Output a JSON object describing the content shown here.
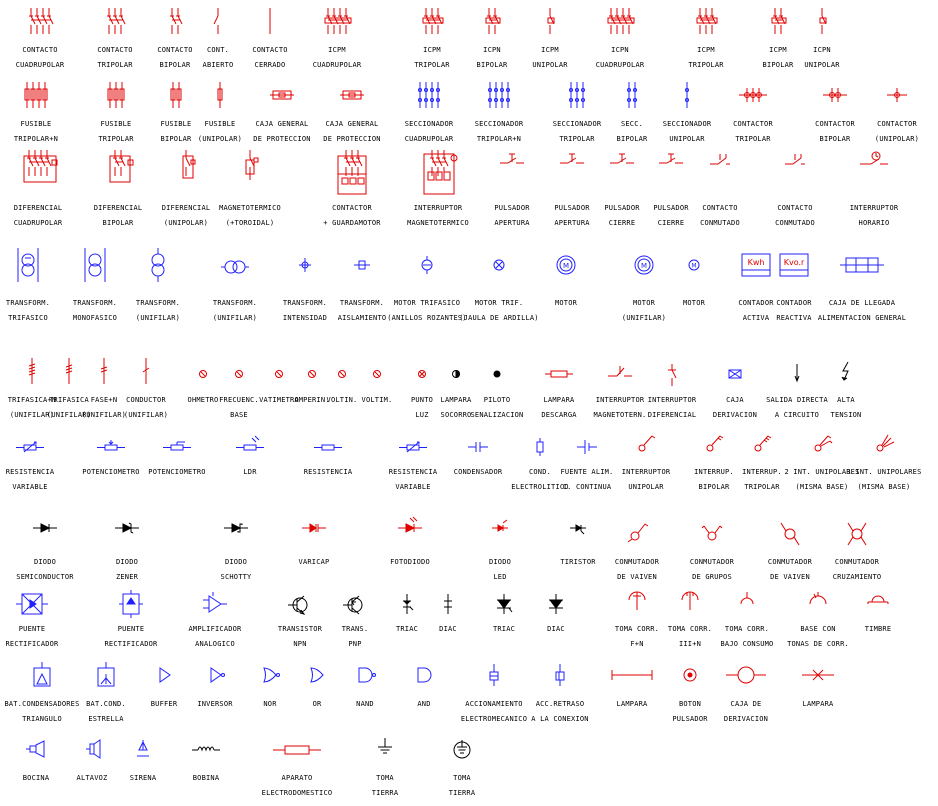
{
  "colors": {
    "red": "#e00000",
    "blue": "#2020ff",
    "black": "#000000"
  },
  "rows": [
    {
      "items": [
        {
          "l1": "CONTACTO",
          "l2": "CUADRUPOLAR",
          "icon": "contact-4pole-icon",
          "color": "red"
        },
        {
          "l1": "CONTACTO",
          "l2": "TRIPOLAR",
          "icon": "contact-3pole-icon",
          "color": "red"
        },
        {
          "l1": "CONTACTO",
          "l2": "BIPOLAR",
          "icon": "contact-2pole-icon",
          "color": "red"
        },
        {
          "l1": "CONT.",
          "l2": "ABIERTO",
          "icon": "contact-open-icon",
          "color": "red"
        },
        {
          "l1": "CONTACTO",
          "l2": "CERRADO",
          "icon": "contact-closed-icon",
          "color": "red"
        },
        {
          "l1": "ICPM",
          "l2": "CUADRUPOLAR",
          "icon": "icpm-4pole-icon",
          "color": "red"
        },
        {
          "l1": "ICPM",
          "l2": "TRIPOLAR",
          "icon": "icpm-3pole-icon",
          "color": "red"
        },
        {
          "l1": "ICPN",
          "l2": "BIPOLAR",
          "icon": "icpn-2pole-icon",
          "color": "red"
        },
        {
          "l1": "ICPM",
          "l2": "UNIPOLAR",
          "icon": "icpm-1pole-icon",
          "color": "red"
        },
        {
          "l1": "ICPN",
          "l2": "CUADRUPOLAR",
          "icon": "icpn-4pole-icon",
          "color": "red"
        },
        {
          "l1": "ICPM",
          "l2": "TRIPOLAR",
          "icon": "icpm-3pole-b-icon",
          "color": "red"
        },
        {
          "l1": "ICPM",
          "l2": "BIPOLAR",
          "icon": "icpm-2pole-icon",
          "color": "red"
        },
        {
          "l1": "ICPN",
          "l2": "UNIPOLAR",
          "icon": "icpn-1pole-icon",
          "color": "red"
        }
      ]
    },
    {
      "items": [
        {
          "l1": "FUSIBLE",
          "l2": "TRIPOLAR+N",
          "icon": "fuse-3pole-n-icon",
          "color": "red"
        },
        {
          "l1": "FUSIBLE",
          "l2": "TRIPOLAR",
          "icon": "fuse-3pole-icon",
          "color": "red"
        },
        {
          "l1": "FUSIBLE",
          "l2": "BIPOLAR",
          "icon": "fuse-2pole-icon",
          "color": "red"
        },
        {
          "l1": "FUSIBLE",
          "l2": "(UNIPOLAR)",
          "icon": "fuse-1pole-icon",
          "color": "red"
        },
        {
          "l1": "CAJA GENERAL",
          "l2": "DE PROTECCION",
          "icon": "protection-box-icon",
          "color": "red"
        },
        {
          "l1": "CAJA GENERAL",
          "l2": "DE PROTECCION",
          "icon": "protection-box-b-icon",
          "color": "red"
        },
        {
          "l1": "SECCIONADOR",
          "l2": "CUADRUPOLAR",
          "icon": "disconnector-4pole-icon",
          "color": "blue"
        },
        {
          "l1": "SECCIONADOR",
          "l2": "TRIPOLAR+N",
          "icon": "disconnector-3pole-n-icon",
          "color": "blue"
        },
        {
          "l1": "SECCIONADOR",
          "l2": "TRIPOLAR",
          "icon": "disconnector-3pole-icon",
          "color": "blue"
        },
        {
          "l1": "SECC.",
          "l2": "BIPOLAR",
          "icon": "disconnector-2pole-icon",
          "color": "blue"
        },
        {
          "l1": "SECCIONADOR",
          "l2": "UNIPOLAR",
          "icon": "disconnector-1pole-icon",
          "color": "blue"
        },
        {
          "l1": "CONTACTOR",
          "l2": "TRIPOLAR",
          "icon": "contactor-3pole-icon",
          "color": "red"
        },
        {
          "l1": "CONTACTOR",
          "l2": "BIPOLAR",
          "icon": "contactor-2pole-icon",
          "color": "red"
        },
        {
          "l1": "CONTACTOR",
          "l2": "(UNIPOLAR)",
          "icon": "contactor-1pole-icon",
          "color": "red"
        }
      ]
    },
    {
      "items": [
        {
          "l1": "DIFERENCIAL",
          "l2": "CUADRUPOLAR",
          "icon": "differential-4pole-icon",
          "color": "red"
        },
        {
          "l1": "DIFERENCIAL",
          "l2": "BIPOLAR",
          "icon": "differential-2pole-icon",
          "color": "red"
        },
        {
          "l1": "DIFERENCIAL",
          "l2": "(UNIPOLAR)",
          "icon": "differential-1pole-icon",
          "color": "red"
        },
        {
          "l1": "MAGNETOTERMICO",
          "l2": "(+TOROIDAL)",
          "icon": "magnetothermal-icon",
          "color": "red"
        },
        {
          "l1": "CONTACTOR",
          "l2": "+ GUARDAMOTOR",
          "icon": "contactor-motorguard-icon",
          "color": "red"
        },
        {
          "l1": "INTERRUPTOR",
          "l2": "MAGNETOTERMICO",
          "icon": "magnetothermal-switch-icon",
          "color": "red"
        },
        {
          "l1": "PULSADOR",
          "l2": "APERTURA",
          "icon": "pushbutton-open-icon",
          "color": "red"
        },
        {
          "l1": "PULSADOR",
          "l2": "APERTURA",
          "icon": "pushbutton-open-b-icon",
          "color": "red"
        },
        {
          "l1": "PULSADOR",
          "l2": "CIERRE",
          "icon": "pushbutton-close-icon",
          "color": "red"
        },
        {
          "l1": "PULSADOR",
          "l2": "CIERRE",
          "icon": "pushbutton-close-b-icon",
          "color": "red"
        },
        {
          "l1": "CONTACTO",
          "l2": "CONMUTADO",
          "icon": "changeover-contact-icon",
          "color": "red"
        },
        {
          "l1": "CONTACTO",
          "l2": "CONMUTADO",
          "icon": "changeover-contact-b-icon",
          "color": "red"
        },
        {
          "l1": "INTERRUPTOR",
          "l2": "HORARIO",
          "icon": "time-switch-icon",
          "color": "red"
        }
      ]
    },
    {
      "items": [
        {
          "l1": "TRANSFORM.",
          "l2": "TRIFASICO",
          "icon": "transformer-3phase-icon",
          "color": "blue"
        },
        {
          "l1": "TRANSFORM.",
          "l2": "MONOFASICO",
          "icon": "transformer-1phase-icon",
          "color": "blue"
        },
        {
          "l1": "TRANSFORM.",
          "l2": "(UNIFILAR)",
          "icon": "transformer-unifilar-icon",
          "color": "blue"
        },
        {
          "l1": "TRANSFORM.",
          "l2": "(UNIFILAR)",
          "icon": "transformer-unifilar-b-icon",
          "color": "blue"
        },
        {
          "l1": "TRANSFORM.",
          "l2": "INTENSIDAD",
          "icon": "current-transformer-icon",
          "color": "blue"
        },
        {
          "l1": "TRANSFORM.",
          "l2": "AISLAMIENTO",
          "icon": "isolation-transformer-icon",
          "color": "blue"
        },
        {
          "l1": "MOTOR TRIFASICO",
          "l2": "(ANILLOS ROZANTES)",
          "icon": "motor-slipring-icon",
          "color": "blue"
        },
        {
          "l1": "MOTOR TRIF.",
          "l2": "(JAULA DE ARDILLA)",
          "icon": "motor-squirrel-icon",
          "color": "blue"
        },
        {
          "l1": "MOTOR",
          "l2": "",
          "icon": "motor-icon",
          "color": "blue"
        },
        {
          "l1": "MOTOR",
          "l2": "(UNIFILAR)",
          "icon": "motor-unifilar-icon",
          "color": "blue"
        },
        {
          "l1": "MOTOR",
          "l2": "",
          "icon": "motor-small-icon",
          "color": "blue"
        },
        {
          "l1": "CONTADOR",
          "l2": "ACTIVA",
          "icon": "meter-active-icon",
          "color": "blue",
          "tag": "Kwh"
        },
        {
          "l1": "CONTADOR",
          "l2": "REACTIVA",
          "icon": "meter-reactive-icon",
          "color": "blue",
          "tag": "Kvo.r"
        },
        {
          "l1": "CAJA DE LLEGADA",
          "l2": "ALIMENTACION GENERAL",
          "icon": "incoming-box-icon",
          "color": "blue"
        }
      ]
    },
    {
      "items": [
        {
          "l1": "TRIFASICA+N",
          "l2": "(UNIFILAR)",
          "icon": "line-3phase-n-icon",
          "color": "red"
        },
        {
          "l1": "TRIFASICA",
          "l2": "(UNIFILAR)",
          "icon": "line-3phase-icon",
          "color": "red"
        },
        {
          "l1": "FASE+N",
          "l2": "(UNIFILAR)",
          "icon": "line-phase-n-icon",
          "color": "red"
        },
        {
          "l1": "CONDUCTOR",
          "l2": "(UNIFILAR)",
          "icon": "conductor-icon",
          "color": "red"
        },
        {
          "l1": "OHMETRO",
          "l2": "",
          "icon": "ohmmeter-icon",
          "color": "red"
        },
        {
          "l1": "FRECUENC.",
          "l2": "BASE",
          "icon": "frequency-meter-icon",
          "color": "red"
        },
        {
          "l1": "VATIMETRO",
          "l2": "",
          "icon": "wattmeter-icon",
          "color": "red"
        },
        {
          "l1": "AMPERIN.",
          "l2": "",
          "icon": "ammeter-icon",
          "color": "red"
        },
        {
          "l1": "VOLTIN.",
          "l2": "",
          "icon": "voltmeter-icon",
          "color": "red"
        },
        {
          "l1": "VOLTIM.",
          "l2": "",
          "icon": "voltmeter-b-icon",
          "color": "red"
        },
        {
          "l1": "PUNTO",
          "l2": "LUZ",
          "icon": "light-point-icon",
          "color": "red"
        },
        {
          "l1": "LAMPARA",
          "l2": "SOCORRO",
          "icon": "emergency-lamp-icon",
          "color": "black"
        },
        {
          "l1": "PILOTO",
          "l2": "SENALIZACION",
          "icon": "pilot-light-icon",
          "color": "black"
        },
        {
          "l1": "LAMPARA",
          "l2": "DESCARGA",
          "icon": "discharge-lamp-icon",
          "color": "red"
        },
        {
          "l1": "INTERRUPTOR",
          "l2": "MAGNETOTERN.",
          "icon": "switch-magnetothermal-icon",
          "color": "red"
        },
        {
          "l1": "INTERRUPTOR",
          "l2": "DIFERENCIAL",
          "icon": "switch-differential-icon",
          "color": "red"
        },
        {
          "l1": "CAJA",
          "l2": "DERIVACION",
          "icon": "junction-box-icon",
          "color": "blue"
        },
        {
          "l1": "SALIDA DIRECTA",
          "l2": "A CIRCUITO",
          "icon": "direct-output-icon",
          "color": "black"
        },
        {
          "l1": "ALTA",
          "l2": "TENSION",
          "icon": "high-voltage-icon",
          "color": "black"
        }
      ]
    },
    {
      "items": [
        {
          "l1": "RESISTENCIA",
          "l2": "VARIABLE",
          "icon": "variable-resistor-icon",
          "color": "blue"
        },
        {
          "l1": "POTENCIOMETRO",
          "l2": "",
          "icon": "potentiometer-icon",
          "color": "blue"
        },
        {
          "l1": "POTENCIOMETRO",
          "l2": "",
          "icon": "potentiometer-b-icon",
          "color": "blue"
        },
        {
          "l1": "LDR",
          "l2": "",
          "icon": "ldr-icon",
          "color": "blue"
        },
        {
          "l1": "RESISTENCIA",
          "l2": "",
          "icon": "resistor-icon",
          "color": "blue"
        },
        {
          "l1": "RESISTENCIA",
          "l2": "VARIABLE",
          "icon": "variable-resistor-b-icon",
          "color": "blue"
        },
        {
          "l1": "CONDENSADOR",
          "l2": "",
          "icon": "capacitor-icon",
          "color": "blue"
        },
        {
          "l1": "COND.",
          "l2": "ELECTROLITICO",
          "icon": "electrolytic-capacitor-icon",
          "color": "blue"
        },
        {
          "l1": "FUENTE ALIM.",
          "l2": "C. CONTINUA",
          "icon": "dc-source-icon",
          "color": "blue"
        },
        {
          "l1": "INTERRUPTOR",
          "l2": "UNIPOLAR",
          "icon": "switch-1pole-icon",
          "color": "red"
        },
        {
          "l1": "INTERRUP.",
          "l2": "BIPOLAR",
          "icon": "switch-2pole-icon",
          "color": "red"
        },
        {
          "l1": "INTERRUP.",
          "l2": "TRIPOLAR",
          "icon": "switch-3pole-icon",
          "color": "red"
        },
        {
          "l1": "2 INT. UNIPOLARES",
          "l2": "(MISMA BASE)",
          "icon": "double-switch-icon",
          "color": "red"
        },
        {
          "l1": "3 INT. UNIPOLARES",
          "l2": "(MISMA BASE)",
          "icon": "triple-switch-icon",
          "color": "red"
        }
      ]
    },
    {
      "items": [
        {
          "l1": "DIODO",
          "l2": "SEMICONDUCTOR",
          "icon": "diode-icon",
          "color": "black"
        },
        {
          "l1": "DIODO",
          "l2": "ZENER",
          "icon": "zener-diode-icon",
          "color": "black"
        },
        {
          "l1": "DIODO",
          "l2": "SCHOTTY",
          "icon": "schottky-diode-icon",
          "color": "black"
        },
        {
          "l1": "VARICAP",
          "l2": "",
          "icon": "varicap-icon",
          "color": "red"
        },
        {
          "l1": "FOTODIODO",
          "l2": "",
          "icon": "photodiode-icon",
          "color": "red"
        },
        {
          "l1": "DIODO",
          "l2": "LED",
          "icon": "led-icon",
          "color": "red"
        },
        {
          "l1": "TIRISTOR",
          "l2": "",
          "icon": "thyristor-icon",
          "color": "black"
        },
        {
          "l1": "CONMUTADOR",
          "l2": "DE VAIVEN",
          "icon": "two-way-switch-icon",
          "color": "red"
        },
        {
          "l1": "CONMUTADOR",
          "l2": "DE GRUPOS",
          "icon": "group-switch-icon",
          "color": "red"
        },
        {
          "l1": "CONMUTADOR",
          "l2": "DE VAIVEN",
          "icon": "two-way-switch-b-icon",
          "color": "red"
        },
        {
          "l1": "CONMUTADOR",
          "l2": "CRUZAMIENTO",
          "icon": "cross-switch-icon",
          "color": "red"
        }
      ]
    },
    {
      "items": [
        {
          "l1": "PUENTE",
          "l2": "RECTIFICADOR",
          "icon": "bridge-rectifier-icon",
          "color": "blue"
        },
        {
          "l1": "PUENTE",
          "l2": "RECTIFICADOR",
          "icon": "bridge-rectifier-b-icon",
          "color": "blue"
        },
        {
          "l1": "AMPLIFICADOR",
          "l2": "ANALOGICO",
          "icon": "amplifier-icon",
          "color": "blue"
        },
        {
          "l1": "TRANSISTOR",
          "l2": "NPN",
          "icon": "npn-transistor-icon",
          "color": "black"
        },
        {
          "l1": "TRANS.",
          "l2": "PNP",
          "icon": "pnp-transistor-icon",
          "color": "black"
        },
        {
          "l1": "TRIAC",
          "l2": "",
          "icon": "triac-icon",
          "color": "black"
        },
        {
          "l1": "DIAC",
          "l2": "",
          "icon": "diac-icon",
          "color": "black"
        },
        {
          "l1": "TRIAC",
          "l2": "",
          "icon": "triac-b-icon",
          "color": "black"
        },
        {
          "l1": "DIAC",
          "l2": "",
          "icon": "diac-b-icon",
          "color": "black"
        },
        {
          "l1": "TOMA CORR.",
          "l2": "F+N",
          "icon": "socket-fn-icon",
          "color": "red"
        },
        {
          "l1": "TOMA CORR.",
          "l2": "III+N",
          "icon": "socket-3n-icon",
          "color": "red"
        },
        {
          "l1": "TOMA CORR.",
          "l2": "BAJO CONSUMO",
          "icon": "socket-low-icon",
          "color": "red"
        },
        {
          "l1": "BASE CON",
          "l2": "TONAS DE CORR.",
          "icon": "socket-base-icon",
          "color": "red"
        },
        {
          "l1": "TIMBRE",
          "l2": "",
          "icon": "bell-icon",
          "color": "red"
        }
      ]
    },
    {
      "items": [
        {
          "l1": "BAT.CONDENSADORES",
          "l2": "TRIANGULO",
          "icon": "capacitor-bank-delta-icon",
          "color": "blue"
        },
        {
          "l1": "BAT.COND.",
          "l2": "ESTRELLA",
          "icon": "capacitor-bank-star-icon",
          "color": "blue"
        },
        {
          "l1": "BUFFER",
          "l2": "",
          "icon": "buffer-gate-icon",
          "color": "blue"
        },
        {
          "l1": "INVERSOR",
          "l2": "",
          "icon": "inverter-gate-icon",
          "color": "blue"
        },
        {
          "l1": "NOR",
          "l2": "",
          "icon": "nor-gate-icon",
          "color": "blue"
        },
        {
          "l1": "OR",
          "l2": "",
          "icon": "or-gate-icon",
          "color": "blue"
        },
        {
          "l1": "NAND",
          "l2": "",
          "icon": "nand-gate-icon",
          "color": "blue"
        },
        {
          "l1": "AND",
          "l2": "",
          "icon": "and-gate-icon",
          "color": "blue"
        },
        {
          "l1": "ACCIONAMIENTO",
          "l2": "ELECTROMECANICO",
          "icon": "electromechanical-drive-icon",
          "color": "blue"
        },
        {
          "l1": "ACC.RETRASO",
          "l2": "A LA CONEXION",
          "icon": "delay-drive-icon",
          "color": "blue"
        },
        {
          "l1": "LAMPARA",
          "l2": "",
          "icon": "lamp-fluorescent-icon",
          "color": "red"
        },
        {
          "l1": "BOTON",
          "l2": "PULSADOR",
          "icon": "push-button-icon",
          "color": "red"
        },
        {
          "l1": "CAJA DE",
          "l2": "DERIVACION",
          "icon": "junction-box-b-icon",
          "color": "red"
        },
        {
          "l1": "LAMPARA",
          "l2": "",
          "icon": "lamp-cross-icon",
          "color": "red"
        }
      ]
    },
    {
      "items": [
        {
          "l1": "BOCINA",
          "l2": "",
          "icon": "horn-icon",
          "color": "blue"
        },
        {
          "l1": "ALTAVOZ",
          "l2": "",
          "icon": "speaker-icon",
          "color": "blue"
        },
        {
          "l1": "SIRENA",
          "l2": "",
          "icon": "siren-icon",
          "color": "blue"
        },
        {
          "l1": "BOBINA",
          "l2": "",
          "icon": "coil-icon",
          "color": "black"
        },
        {
          "l1": "APARATO",
          "l2": "ELECTRODOMESTICO",
          "icon": "appliance-icon",
          "color": "red"
        },
        {
          "l1": "TOMA",
          "l2": "TIERRA",
          "icon": "ground-icon",
          "color": "black"
        },
        {
          "l1": "TOMA",
          "l2": "TIERRA",
          "icon": "ground-circle-icon",
          "color": "black"
        }
      ]
    }
  ]
}
